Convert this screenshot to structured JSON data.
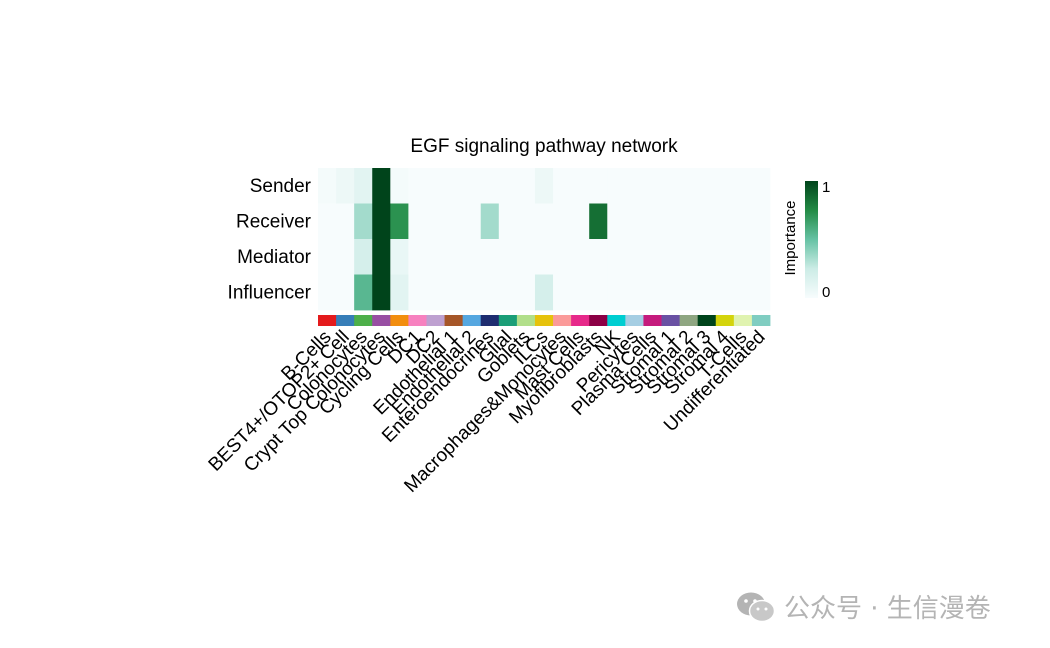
{
  "chart_data": {
    "type": "heatmap",
    "title": "EGF signaling pathway network",
    "rows": [
      "Sender",
      "Receiver",
      "Mediator",
      "Influencer"
    ],
    "columns": [
      "B-Cells",
      "BEST4+/OTOP2+ Cell",
      "Colonocytes",
      "Crypt Top Colonocytes",
      "Cycling Cells",
      "DC1",
      "DC2",
      "Endothelial 1",
      "Endothelial 2",
      "Enteroendocrines",
      "Glial",
      "Goblets",
      "ILCs",
      "Macrophages&Monocytes",
      "Mast Cells",
      "Myofibroblasts",
      "NK",
      "Pericytes",
      "Plasma Cells",
      "Stromal 1",
      "Stromal 2",
      "Stromal 3",
      "Stromal 4",
      "T-Cells",
      "Undifferentiated"
    ],
    "column_colors": [
      "#e41a1c",
      "#377eb8",
      "#4daf4a",
      "#984ea3",
      "#f28e0f",
      "#f781bf",
      "#bea0d0",
      "#a65628",
      "#56a7e0",
      "#1f2d70",
      "#1b9e77",
      "#b2df8a",
      "#e6c20c",
      "#fb9a99",
      "#e7298a",
      "#8c0045",
      "#00ced1",
      "#a6cee3",
      "#c51b7d",
      "#6a51a3",
      "#8fa681",
      "#00441b",
      "#d4d40c",
      "#e0f3b0",
      "#80cdc1"
    ],
    "values": [
      [
        0.02,
        0.06,
        0.12,
        1.0,
        0.02,
        0.0,
        0.0,
        0.0,
        0.0,
        0.0,
        0.0,
        0.0,
        0.06,
        0.0,
        0.0,
        0.0,
        0.0,
        0.0,
        0.0,
        0.0,
        0.0,
        0.0,
        0.0,
        0.0,
        0.0
      ],
      [
        0.0,
        0.0,
        0.35,
        1.0,
        0.72,
        0.0,
        0.0,
        0.0,
        0.0,
        0.35,
        0.0,
        0.0,
        0.0,
        0.0,
        0.0,
        0.85,
        0.0,
        0.0,
        0.0,
        0.0,
        0.0,
        0.0,
        0.0,
        0.0,
        0.0
      ],
      [
        0.0,
        0.0,
        0.2,
        1.0,
        0.08,
        0.0,
        0.0,
        0.0,
        0.0,
        0.0,
        0.0,
        0.0,
        0.0,
        0.0,
        0.0,
        0.0,
        0.0,
        0.0,
        0.0,
        0.0,
        0.0,
        0.0,
        0.0,
        0.0,
        0.0
      ],
      [
        0.0,
        0.0,
        0.55,
        1.0,
        0.12,
        0.0,
        0.0,
        0.0,
        0.0,
        0.0,
        0.0,
        0.0,
        0.2,
        0.0,
        0.0,
        0.0,
        0.0,
        0.0,
        0.0,
        0.0,
        0.0,
        0.0,
        0.0,
        0.0,
        0.0
      ]
    ],
    "colorbar": {
      "label": "Importance",
      "min": 0,
      "max": 1,
      "ticks": [
        "0",
        "1"
      ],
      "low_color": "#f7fcfd",
      "high_color": "#00441b"
    },
    "legend_placement": "right",
    "grid": false
  },
  "watermark": {
    "text": "公众号 · 生信漫卷",
    "icon": "wechat-icon"
  }
}
